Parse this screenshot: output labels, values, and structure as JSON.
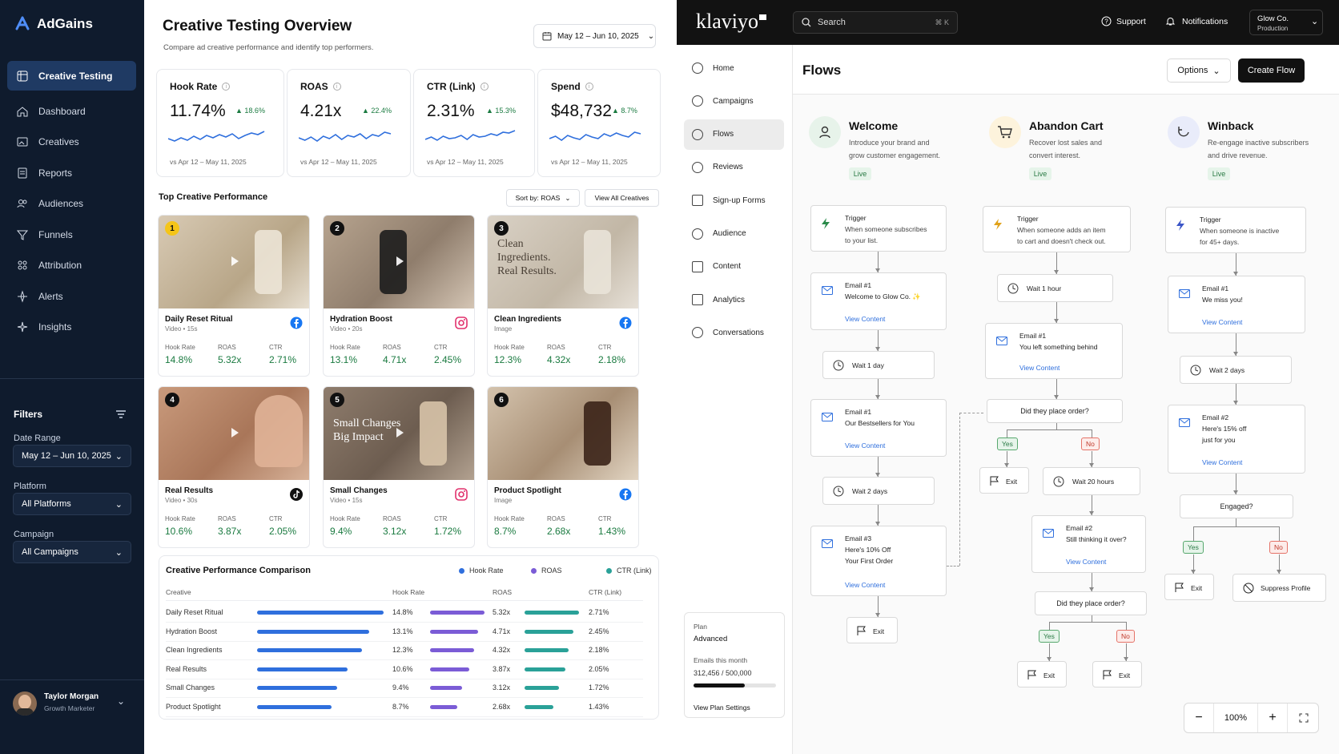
{
  "adgains": {
    "brand": "AdGains",
    "nav": [
      {
        "label": "Creative Testing",
        "icon": "grid-icon",
        "active": true
      },
      {
        "label": "Dashboard",
        "icon": "home-icon"
      },
      {
        "label": "Creatives",
        "icon": "image-icon"
      },
      {
        "label": "Reports",
        "icon": "document-icon"
      },
      {
        "label": "Audiences",
        "icon": "users-icon"
      },
      {
        "label": "Funnels",
        "icon": "funnel-icon"
      },
      {
        "label": "Attribution",
        "icon": "attribution-icon"
      },
      {
        "label": "Alerts",
        "icon": "alert-icon"
      },
      {
        "label": "Insights",
        "icon": "sparkle-icon"
      }
    ],
    "filters": {
      "title": "Filters",
      "date_label": "Date Range",
      "date_value": "May 12 – Jun 10, 2025",
      "platform_label": "Platform",
      "platform_value": "All Platforms",
      "campaign_label": "Campaign",
      "campaign_value": "All Campaigns"
    },
    "user": {
      "name": "Taylor Morgan",
      "role": "Growth Marketer"
    }
  },
  "main": {
    "title": "Creative Testing Overview",
    "subtitle": "Compare ad creative performance and identify top performers.",
    "date_range": "May 12 – Jun 10, 2025",
    "kpis": [
      {
        "label": "Hook Rate",
        "value": "11.74%",
        "change": "18.6%",
        "compare": "vs Apr 12 – May 11, 2025"
      },
      {
        "label": "ROAS",
        "value": "4.21x",
        "change": "22.4%",
        "compare": "vs Apr 12 – May 11, 2025"
      },
      {
        "label": "CTR (Link)",
        "value": "2.31%",
        "change": "15.3%",
        "compare": "vs Apr 12 – May 11, 2025"
      },
      {
        "label": "Spend",
        "value": "$48,732",
        "change": "8.7%",
        "compare": "vs Apr 12 – May 11, 2025"
      }
    ],
    "top_title": "Top Creative Performance",
    "sort_label": "Sort by: ROAS",
    "view_all": "View All Creatives",
    "metric_labels": {
      "hook": "Hook Rate",
      "roas": "ROAS",
      "ctr": "CTR"
    },
    "creatives": [
      {
        "rank": "1",
        "name": "Daily Reset Ritual",
        "meta": "Video • 15s",
        "platform": "facebook-icon",
        "hook": "14.8%",
        "roas": "5.32x",
        "ctr": "2.71%"
      },
      {
        "rank": "2",
        "name": "Hydration Boost",
        "meta": "Video • 20s",
        "platform": "instagram-icon",
        "hook": "13.1%",
        "roas": "4.71x",
        "ctr": "2.45%"
      },
      {
        "rank": "3",
        "name": "Clean Ingredients",
        "meta": "Image",
        "platform": "facebook-icon",
        "hook": "12.3%",
        "roas": "4.32x",
        "ctr": "2.18%",
        "overlay": [
          "Clean",
          "Ingredients.",
          "Real Results."
        ]
      },
      {
        "rank": "4",
        "name": "Real Results",
        "meta": "Video • 30s",
        "platform": "tiktok-icon",
        "hook": "10.6%",
        "roas": "3.87x",
        "ctr": "2.05%"
      },
      {
        "rank": "5",
        "name": "Small Changes",
        "meta": "Video • 15s",
        "platform": "instagram-icon",
        "hook": "9.4%",
        "roas": "3.12x",
        "ctr": "1.72%",
        "overlay": [
          "Small Changes",
          "Big Impact"
        ]
      },
      {
        "rank": "6",
        "name": "Product Spotlight",
        "meta": "Image",
        "platform": "facebook-icon",
        "hook": "8.7%",
        "roas": "2.68x",
        "ctr": "1.43%"
      }
    ],
    "comparison": {
      "title": "Creative Performance Comparison",
      "legend": [
        "Hook Rate",
        "ROAS",
        "CTR (Link)"
      ],
      "headers": [
        "Creative",
        "Hook Rate",
        "ROAS",
        "CTR (Link)"
      ],
      "rows": [
        {
          "name": "Daily Reset Ritual",
          "hook": 14.8,
          "roas": 5.32,
          "ctr": 2.71,
          "hook_t": "14.8%",
          "roas_t": "5.32x",
          "ctr_t": "2.71%"
        },
        {
          "name": "Hydration Boost",
          "hook": 13.1,
          "roas": 4.71,
          "ctr": 2.45,
          "hook_t": "13.1%",
          "roas_t": "4.71x",
          "ctr_t": "2.45%"
        },
        {
          "name": "Clean Ingredients",
          "hook": 12.3,
          "roas": 4.32,
          "ctr": 2.18,
          "hook_t": "12.3%",
          "roas_t": "4.32x",
          "ctr_t": "2.18%"
        },
        {
          "name": "Real Results",
          "hook": 10.6,
          "roas": 3.87,
          "ctr": 2.05,
          "hook_t": "10.6%",
          "roas_t": "3.87x",
          "ctr_t": "2.05%"
        },
        {
          "name": "Small Changes",
          "hook": 9.4,
          "roas": 3.12,
          "ctr": 1.72,
          "hook_t": "9.4%",
          "roas_t": "3.12x",
          "ctr_t": "1.72%"
        },
        {
          "name": "Product Spotlight",
          "hook": 8.7,
          "roas": 2.68,
          "ctr": 1.43,
          "hook_t": "8.7%",
          "roas_t": "2.68x",
          "ctr_t": "1.43%"
        }
      ]
    }
  },
  "klaviyo": {
    "brand": "klaviyo",
    "search_placeholder": "Search",
    "search_shortcut": "⌘ K",
    "support": "Support",
    "notifications": "Notifications",
    "account_name": "Glow Co.",
    "account_env": "Production",
    "nav": [
      "Home",
      "Campaigns",
      "Flows",
      "Reviews",
      "Sign-up Forms",
      "Audience",
      "Content",
      "Analytics",
      "Conversations"
    ],
    "page_title": "Flows",
    "options": "Options",
    "create_flow": "Create Flow",
    "plan": {
      "label": "Plan",
      "name": "Advanced",
      "emails_label": "Emails this month",
      "usage": "312,456 / 500,000",
      "usage_fraction": 0.625,
      "settings": "View Plan Settings"
    },
    "zoom": "100%",
    "view_content": "View Content",
    "trigger": "Trigger",
    "exit": "Exit",
    "yes": "Yes",
    "no": "No",
    "flows": {
      "welcome": {
        "title": "Welcome",
        "desc1": "Introduce your brand and",
        "desc2": "grow customer engagement.",
        "status": "Live",
        "trigger1": "When someone subscribes",
        "trigger2": "to your list.",
        "e1a": "Email #1",
        "e1b": "Welcome to Glow Co. ✨",
        "wait1": "Wait 1 day",
        "e2a": "Email #1",
        "e2b": "Our Bestsellers for You",
        "wait2": "Wait 2 days",
        "e3a": "Email #3",
        "e3b": "Here's 10% Off",
        "e3c": "Your First Order"
      },
      "abandon": {
        "title": "Abandon Cart",
        "desc1": "Recover lost sales and",
        "desc2": "convert interest.",
        "status": "Live",
        "trigger1": "When someone adds an item",
        "trigger2": "to cart and doesn't check out.",
        "wait1": "Wait 1 hour",
        "e1a": "Email #1",
        "e1b": "You left something behind",
        "q1": "Did they place order?",
        "wait2": "Wait 20 hours",
        "e2a": "Email #2",
        "e2b": "Still thinking it over?",
        "q2": "Did they place order?"
      },
      "winback": {
        "title": "Winback",
        "desc1": "Re-engage inactive subscribers",
        "desc2": "and drive revenue.",
        "status": "Live",
        "trigger1": "When someone is inactive",
        "trigger2": "for 45+ days.",
        "e1a": "Email #1",
        "e1b": "We miss you!",
        "wait1": "Wait 2 days",
        "e2a": "Email #2",
        "e2b": "Here's 15% off",
        "e2c": "just for you",
        "q1": "Engaged?",
        "suppress": "Suppress Profile"
      }
    }
  },
  "colors": {
    "hook": "#2f6fdd",
    "roas": "#7b5cd6",
    "ctr": "#2aa198",
    "sidebar": "#0f1b2d",
    "accent": "#1f3a63"
  }
}
